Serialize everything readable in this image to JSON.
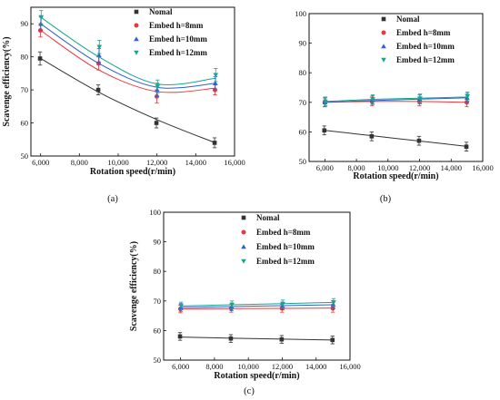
{
  "chart_data": [
    {
      "type": "scatter",
      "panel_label": "(a)",
      "xlabel": "Rotation speed(r/min)",
      "ylabel": "Scavenge efficiency(%)",
      "xlim": [
        5500,
        16000
      ],
      "ylim": [
        50,
        95
      ],
      "xticks": [
        6000,
        8000,
        10000,
        12000,
        14000,
        16000
      ],
      "xtick_labels": [
        "6,000",
        "8,000",
        "10,000",
        "12,000",
        "14,000",
        "16,000"
      ],
      "yticks": [
        50,
        60,
        70,
        80,
        90
      ],
      "ytick_labels": [
        "50",
        "60",
        "70",
        "80",
        "90"
      ],
      "legend_position": "top-right",
      "x": [
        6000,
        9000,
        12000,
        15000
      ],
      "series": [
        {
          "name": "Nomal",
          "marker": "square",
          "color": "#333333",
          "values": [
            79.5,
            70,
            60,
            54
          ],
          "errors": [
            2,
            1.5,
            1.5,
            1.5
          ],
          "fit": [
            79.5,
            69.3,
            61,
            54
          ]
        },
        {
          "name": "Embed h=8mm",
          "marker": "circle",
          "color": "#e8383b",
          "values": [
            88,
            78,
            68,
            70
          ],
          "errors": [
            2,
            2,
            2,
            1.5
          ],
          "fit": [
            88,
            76,
            69.5,
            70.5
          ]
        },
        {
          "name": "Embed h=10mm",
          "marker": "triangle-up",
          "color": "#2f5fd0",
          "values": [
            90,
            80.5,
            70,
            72
          ],
          "errors": [
            2,
            2,
            2,
            2
          ],
          "fit": [
            90,
            78,
            70.8,
            72
          ]
        },
        {
          "name": "Embed h=12mm",
          "marker": "triangle-down",
          "color": "#18a58c",
          "values": [
            92,
            83,
            71,
            74.5
          ],
          "errors": [
            2,
            2,
            2,
            2
          ],
          "fit": [
            92,
            80,
            71.8,
            73.5
          ]
        }
      ]
    },
    {
      "type": "scatter",
      "panel_label": "(b)",
      "xlabel": "Rotation speed(r/min)",
      "ylabel": "",
      "xlim": [
        5000,
        16000
      ],
      "ylim": [
        50,
        100
      ],
      "xticks": [
        6000,
        8000,
        10000,
        12000,
        14000,
        16000
      ],
      "xtick_labels": [
        "6,000",
        "8,000",
        "10,000",
        "12,000",
        "14,000",
        "16,000"
      ],
      "yticks": [
        50,
        60,
        70,
        80,
        90,
        100
      ],
      "ytick_labels": [
        "50",
        "60",
        "70",
        "80",
        "90",
        "100"
      ],
      "legend_position": "top-right",
      "x": [
        6000,
        9000,
        12000,
        15000
      ],
      "series": [
        {
          "name": "Nomal",
          "marker": "square",
          "color": "#333333",
          "values": [
            60.5,
            58.5,
            57,
            55
          ],
          "errors": [
            1.5,
            1.5,
            1.5,
            1.5
          ],
          "fit": [
            60.5,
            58.7,
            56.9,
            55.1
          ]
        },
        {
          "name": "Embed h=8mm",
          "marker": "circle",
          "color": "#e8383b",
          "values": [
            70,
            70.3,
            70.3,
            70
          ],
          "errors": [
            1.5,
            1.5,
            1.5,
            1.5
          ],
          "fit": [
            70,
            70.3,
            70.3,
            70
          ]
        },
        {
          "name": "Embed h=10mm",
          "marker": "triangle-up",
          "color": "#2f5fd0",
          "values": [
            70,
            70.8,
            71,
            71.5
          ],
          "errors": [
            1.5,
            1.5,
            1.5,
            1.5
          ],
          "fit": [
            70,
            70.6,
            71.1,
            71.5
          ]
        },
        {
          "name": "Embed h=12mm",
          "marker": "triangle-down",
          "color": "#18a58c",
          "values": [
            70.3,
            71,
            71.3,
            72
          ],
          "errors": [
            1.5,
            1.5,
            1.5,
            1.5
          ],
          "fit": [
            70.3,
            71,
            71.4,
            71.8
          ]
        }
      ]
    },
    {
      "type": "scatter",
      "panel_label": "(c)",
      "xlabel": "Rotation speed(r/min)",
      "ylabel": "Scavenge efficiency(%)",
      "xlim": [
        5000,
        16000
      ],
      "ylim": [
        50,
        100
      ],
      "xticks": [
        6000,
        8000,
        10000,
        12000,
        14000,
        16000
      ],
      "xtick_labels": [
        "6,000",
        "8,000",
        "10,000",
        "12,000",
        "14,000",
        "16,000"
      ],
      "yticks": [
        50,
        60,
        70,
        80,
        90,
        100
      ],
      "ytick_labels": [
        "50",
        "60",
        "70",
        "80",
        "90",
        "100"
      ],
      "legend_position": "top-right",
      "x": [
        6000,
        9000,
        12000,
        15000
      ],
      "series": [
        {
          "name": "Nomal",
          "marker": "square",
          "color": "#333333",
          "values": [
            58,
            57.3,
            57,
            56.8
          ],
          "errors": [
            1.3,
            1.3,
            1.3,
            1.3
          ],
          "fit": [
            57.8,
            57.4,
            57.1,
            56.8
          ]
        },
        {
          "name": "Embed h=8mm",
          "marker": "circle",
          "color": "#e8383b",
          "values": [
            67.3,
            67.5,
            67.5,
            67.5
          ],
          "errors": [
            1.3,
            1.3,
            1.3,
            1.3
          ],
          "fit": [
            67.3,
            67.4,
            67.5,
            67.6
          ]
        },
        {
          "name": "Embed h=10mm",
          "marker": "triangle-up",
          "color": "#2f5fd0",
          "values": [
            67.8,
            68,
            68.3,
            68.8
          ],
          "errors": [
            1.3,
            1.3,
            1.3,
            1.3
          ],
          "fit": [
            67.8,
            68.1,
            68.4,
            68.7
          ]
        },
        {
          "name": "Embed h=12mm",
          "marker": "triangle-down",
          "color": "#18a58c",
          "values": [
            68.3,
            68.7,
            69,
            69.5
          ],
          "errors": [
            1.3,
            1.3,
            1.3,
            1.3
          ],
          "fit": [
            68.3,
            68.7,
            69.1,
            69.5
          ]
        }
      ]
    }
  ]
}
